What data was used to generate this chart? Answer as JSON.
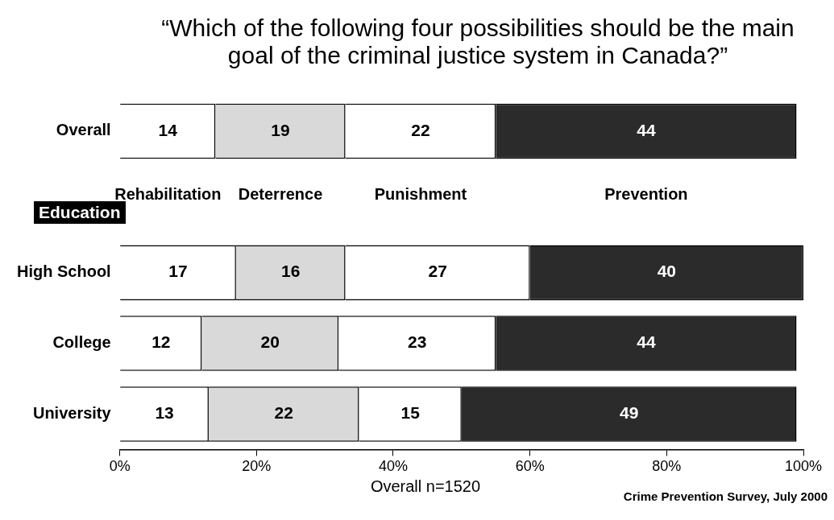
{
  "chart_data": {
    "type": "bar",
    "orientation": "horizontal",
    "stacked": true,
    "title": "“Which of the following four possibilities should be the main goal of the criminal justice system in Canada?”",
    "categories": [
      "Overall",
      null,
      "High School",
      "College",
      "University"
    ],
    "series": [
      {
        "name": "Rehabilitation",
        "color": "#ffffff",
        "values": [
          14,
          null,
          17,
          12,
          13
        ]
      },
      {
        "name": "Deterrence",
        "color": "#d9d9d9",
        "values": [
          19,
          null,
          16,
          20,
          22
        ]
      },
      {
        "name": "Punishment",
        "color": "#ffffff",
        "values": [
          22,
          null,
          27,
          23,
          15
        ]
      },
      {
        "name": "Prevention",
        "color": "#2b2b2b",
        "values": [
          44,
          null,
          40,
          44,
          49
        ]
      }
    ],
    "xlim": [
      0,
      100
    ],
    "xticks": [
      {
        "value": 0,
        "label": "0%"
      },
      {
        "value": 20,
        "label": "20%"
      },
      {
        "value": 40,
        "label": "40%"
      },
      {
        "value": 60,
        "label": "60%"
      },
      {
        "value": 80,
        "label": "80%"
      },
      {
        "value": 100,
        "label": "100%"
      }
    ],
    "data_labels": true,
    "grid": false,
    "legend": false,
    "annotations": [
      "Education",
      "Overall n=1520",
      "Crime Prevention Survey, July 2000"
    ]
  }
}
